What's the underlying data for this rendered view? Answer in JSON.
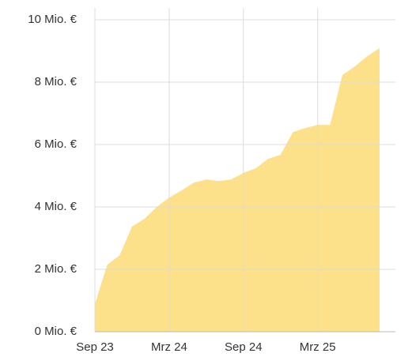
{
  "chart_data": {
    "type": "area",
    "categories": [
      "Sep 23",
      null,
      null,
      null,
      null,
      null,
      "Mrz 24",
      null,
      null,
      null,
      null,
      null,
      "Sep 24",
      null,
      null,
      null,
      null,
      null,
      "Mrz 25",
      null,
      null,
      null,
      null,
      null
    ],
    "values": [
      0.89,
      2.15,
      2.45,
      3.37,
      3.62,
      4.0,
      4.3,
      4.53,
      4.78,
      4.88,
      4.83,
      4.88,
      5.09,
      5.24,
      5.54,
      5.67,
      6.4,
      6.53,
      6.63,
      6.63,
      8.23,
      8.5,
      8.83,
      9.09
    ],
    "color": "#fde08a",
    "ylim": [
      0,
      10
    ],
    "yticks": [
      {
        "value": 0,
        "label": "0 Mio. €"
      },
      {
        "value": 2,
        "label": "2 Mio. €"
      },
      {
        "value": 4,
        "label": "4 Mio. €"
      },
      {
        "value": 6,
        "label": "6 Mio. €"
      },
      {
        "value": 8,
        "label": "8 Mio. €"
      },
      {
        "value": 10,
        "label": "10 Mio. €"
      }
    ],
    "grid": true
  }
}
